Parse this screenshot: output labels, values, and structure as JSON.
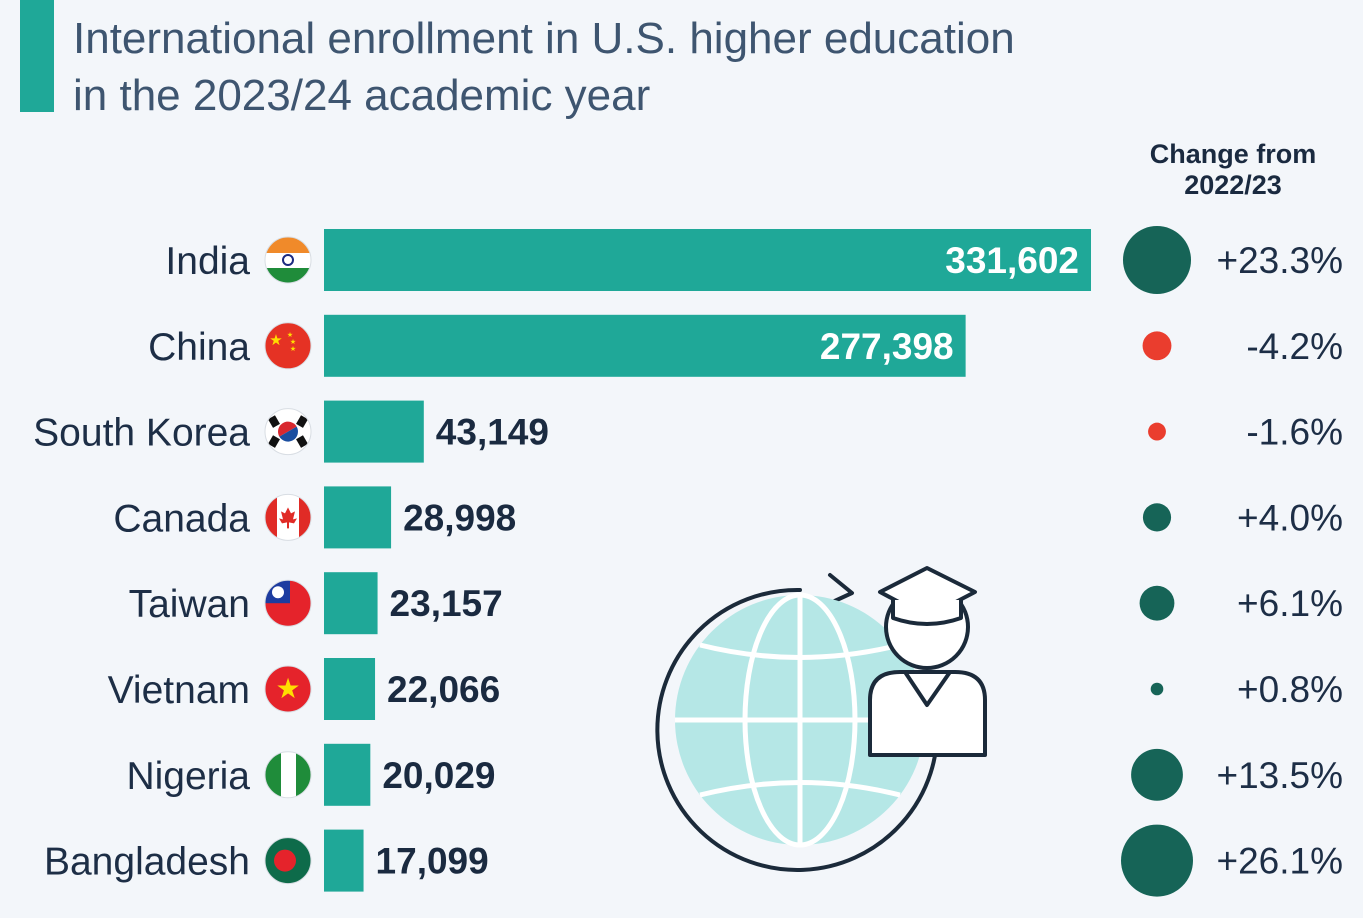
{
  "title": {
    "line1": "International enrollment in U.S. higher education",
    "line2": "in the 2023/24 academic year"
  },
  "change_header": {
    "line1": "Change from",
    "line2": "2022/23"
  },
  "colors": {
    "bar": "#1fa898",
    "positive": "#166457",
    "negative": "#ea3d2e",
    "text": "#1d2e46",
    "background": "#f3f6fa"
  },
  "icons": [
    "flag-india-icon",
    "flag-china-icon",
    "flag-south-korea-icon",
    "flag-canada-icon",
    "flag-taiwan-icon",
    "flag-vietnam-icon",
    "flag-nigeria-icon",
    "flag-bangladesh-icon",
    "globe-graduate-icon"
  ],
  "chart_data": {
    "type": "bar",
    "orientation": "horizontal",
    "categories": [
      "India",
      "China",
      "South Korea",
      "Canada",
      "Taiwan",
      "Vietnam",
      "Nigeria",
      "Bangladesh"
    ],
    "values": [
      331602,
      277398,
      43149,
      28998,
      23157,
      22066,
      20029,
      17099
    ],
    "value_labels": [
      "331,602",
      "277,398",
      "43,149",
      "28,998",
      "23,157",
      "22,066",
      "20,029",
      "17,099"
    ],
    "change_values": [
      23.3,
      -4.2,
      -1.6,
      4.0,
      6.1,
      0.8,
      13.5,
      26.1
    ],
    "change_labels": [
      "+23.3%",
      "-4.2%",
      "-1.6%",
      "+4.0%",
      "+6.1%",
      "+0.8%",
      "+13.5%",
      "+26.1%"
    ],
    "legend": "none",
    "grid": false
  }
}
